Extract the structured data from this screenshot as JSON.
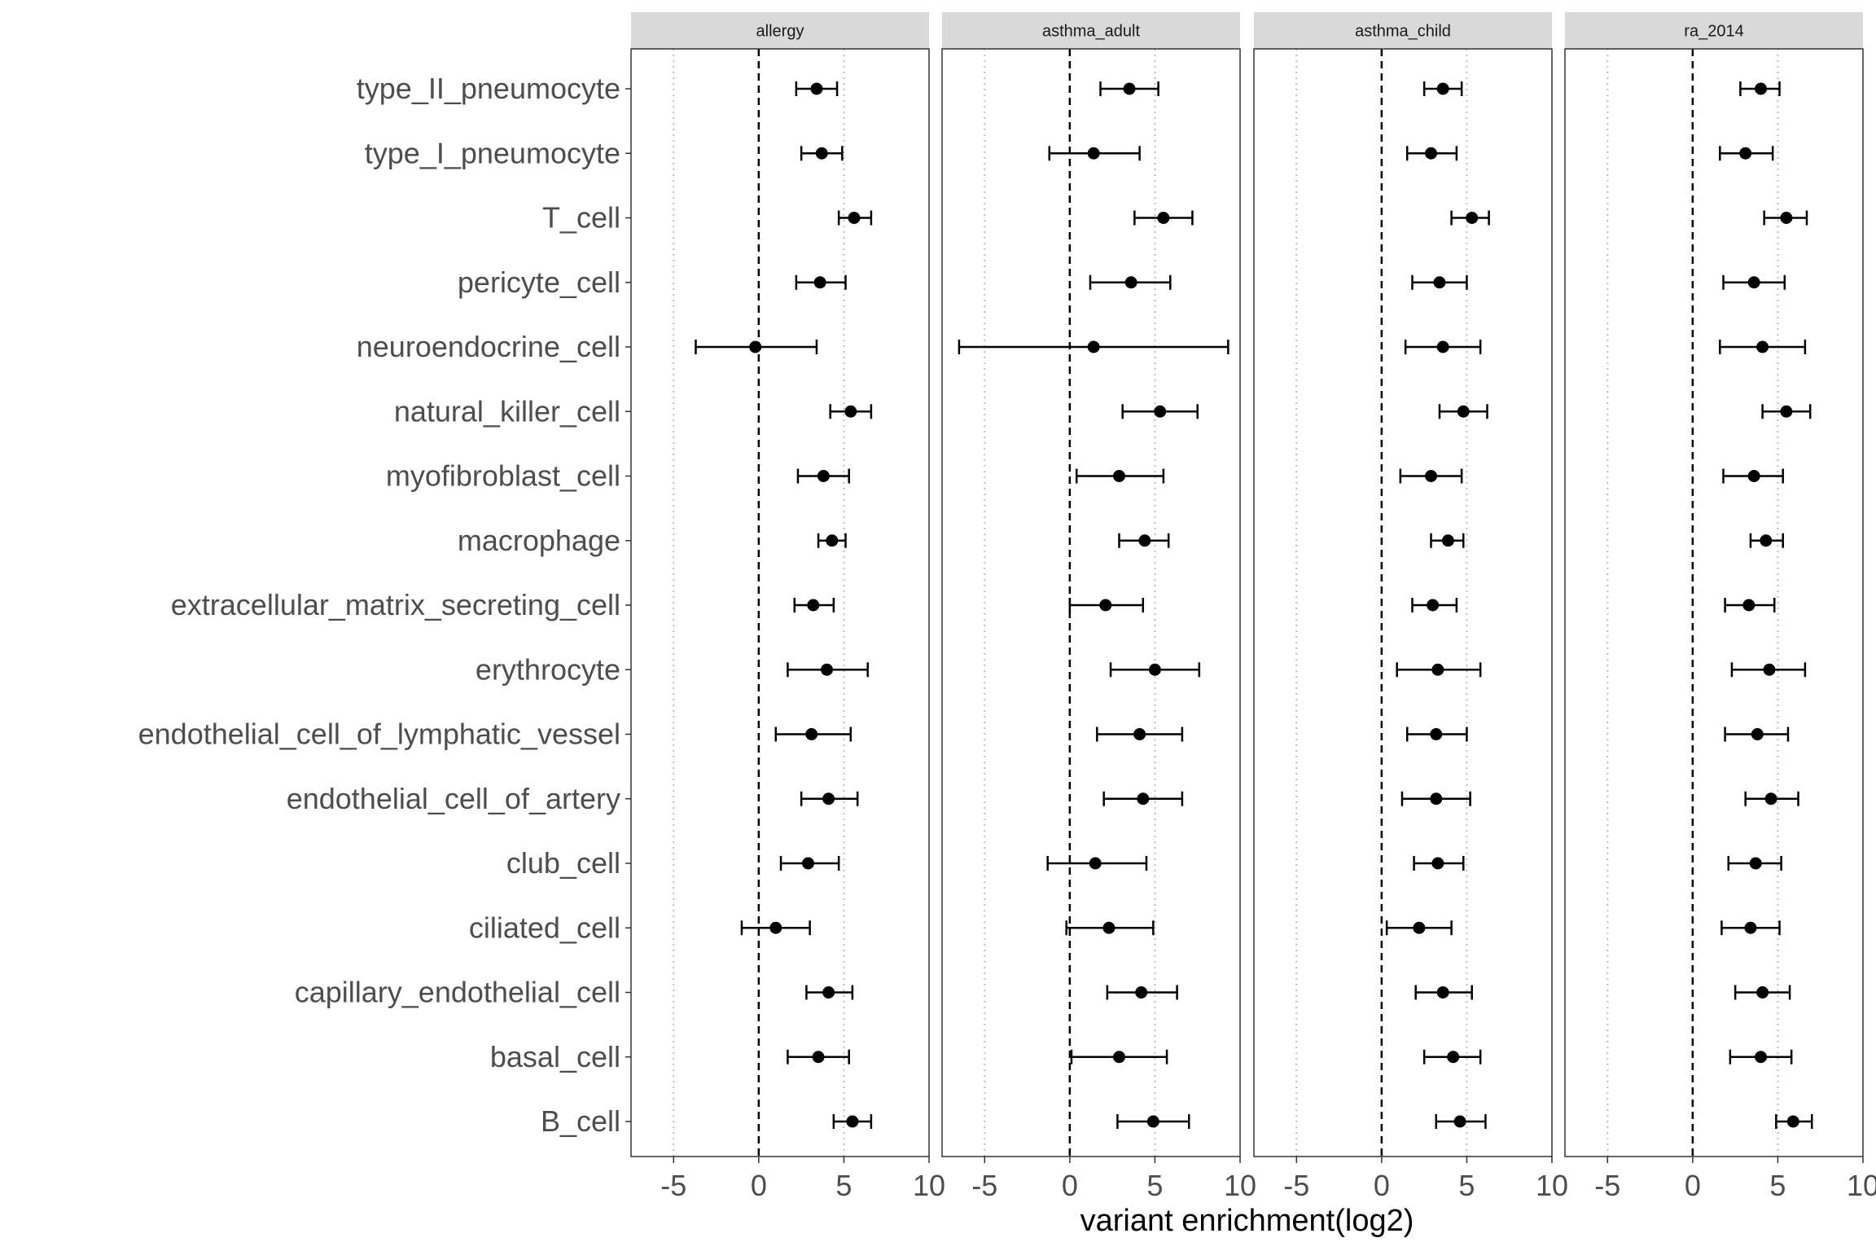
{
  "chart_data": {
    "type": "scatter",
    "subtype": "faceted dot-and-whisker (point estimate with error bars)",
    "xlabel": "variant enrichment(log2)",
    "ylabel": "",
    "xlim": [
      -7.5,
      10
    ],
    "xticks": [
      -5,
      0,
      5,
      10
    ],
    "xtick_labels": [
      "-5",
      "0",
      "5",
      "10"
    ],
    "reference_line": 0,
    "grid": "dotted vertical lines at -5, 0, 5",
    "legend": "none",
    "categories": [
      "type_II_pneumocyte",
      "type_I_pneumocyte",
      "T_cell",
      "pericyte_cell",
      "neuroendocrine_cell",
      "natural_killer_cell",
      "myofibroblast_cell",
      "macrophage",
      "extracellular_matrix_secreting_cell",
      "erythrocyte",
      "endothelial_cell_of_lymphatic_vessel",
      "endothelial_cell_of_artery",
      "club_cell",
      "ciliated_cell",
      "capillary_endothelial_cell",
      "basal_cell",
      "B_cell"
    ],
    "facets": [
      {
        "name": "allergy",
        "estimate": [
          3.4,
          3.7,
          5.6,
          3.6,
          -0.2,
          5.4,
          3.8,
          4.3,
          3.2,
          4.0,
          3.1,
          4.1,
          2.9,
          1.0,
          4.1,
          3.5,
          5.5
        ],
        "lower": [
          2.2,
          2.5,
          4.7,
          2.2,
          -3.7,
          4.2,
          2.3,
          3.5,
          2.1,
          1.7,
          1.0,
          2.5,
          1.3,
          -1.0,
          2.8,
          1.7,
          4.4
        ],
        "upper": [
          4.6,
          4.9,
          6.6,
          5.1,
          3.4,
          6.6,
          5.3,
          5.1,
          4.4,
          6.4,
          5.4,
          5.8,
          4.7,
          3.0,
          5.5,
          5.3,
          6.6
        ]
      },
      {
        "name": "asthma_adult",
        "estimate": [
          3.5,
          1.4,
          5.5,
          3.6,
          1.4,
          5.3,
          2.9,
          4.4,
          2.1,
          5.0,
          4.1,
          4.3,
          1.5,
          2.3,
          4.2,
          2.9,
          4.9
        ],
        "lower": [
          1.8,
          -1.2,
          3.8,
          1.2,
          -6.5,
          3.1,
          0.4,
          2.9,
          0.0,
          2.4,
          1.6,
          2.0,
          -1.3,
          -0.2,
          2.2,
          0.1,
          2.8
        ],
        "upper": [
          5.2,
          4.1,
          7.2,
          5.9,
          9.3,
          7.5,
          5.5,
          5.8,
          4.3,
          7.6,
          6.6,
          6.6,
          4.5,
          4.9,
          6.3,
          5.7,
          7.0
        ]
      },
      {
        "name": "asthma_child",
        "estimate": [
          3.6,
          2.9,
          5.3,
          3.4,
          3.6,
          4.8,
          2.9,
          3.9,
          3.0,
          3.3,
          3.2,
          3.2,
          3.3,
          2.2,
          3.6,
          4.2,
          4.6
        ],
        "lower": [
          2.5,
          1.5,
          4.1,
          1.8,
          1.4,
          3.4,
          1.1,
          2.9,
          1.8,
          0.9,
          1.5,
          1.2,
          1.9,
          0.3,
          2.0,
          2.5,
          3.2
        ],
        "upper": [
          4.7,
          4.4,
          6.3,
          5.0,
          5.8,
          6.2,
          4.7,
          4.8,
          4.4,
          5.8,
          5.0,
          5.2,
          4.8,
          4.1,
          5.3,
          5.8,
          6.1
        ]
      },
      {
        "name": "ra_2014",
        "estimate": [
          4.0,
          3.1,
          5.5,
          3.6,
          4.1,
          5.5,
          3.6,
          4.3,
          3.3,
          4.5,
          3.8,
          4.6,
          3.7,
          3.4,
          4.1,
          4.0,
          5.9
        ],
        "lower": [
          2.8,
          1.6,
          4.2,
          1.8,
          1.6,
          4.1,
          1.8,
          3.4,
          1.9,
          2.3,
          1.9,
          3.1,
          2.1,
          1.7,
          2.5,
          2.2,
          4.9
        ],
        "upper": [
          5.1,
          4.7,
          6.7,
          5.4,
          6.6,
          6.9,
          5.3,
          5.3,
          4.8,
          6.6,
          5.6,
          6.2,
          5.2,
          5.1,
          5.7,
          5.8,
          7.0
        ]
      }
    ]
  }
}
